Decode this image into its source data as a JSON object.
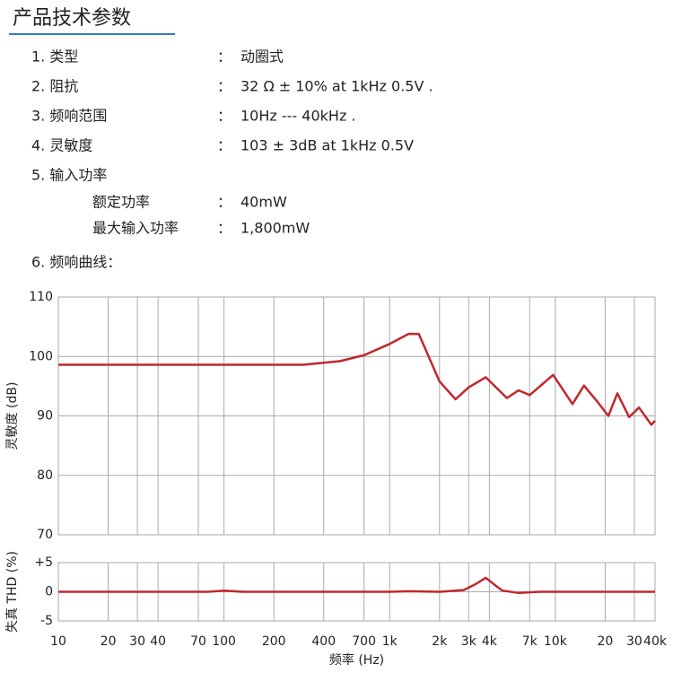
{
  "header": {
    "title": "产品技术参数"
  },
  "specs": {
    "separator": "：",
    "items": [
      {
        "label": "1. 类型",
        "value": "动圈式"
      },
      {
        "label": "2. 阻抗",
        "value": "32 Ω ± 10% at 1kHz 0.5V ."
      },
      {
        "label": "3. 频响范围",
        "value": "10Hz --- 40kHz ."
      },
      {
        "label": "4. 灵敏度",
        "value": "103 ± 3dB at 1kHz 0.5V"
      },
      {
        "label": "5. 输入功率",
        "subitems": [
          {
            "label": "额定功率",
            "value": "40mW"
          },
          {
            "label": "最大输入功率",
            "value": "1,800mW"
          }
        ]
      }
    ],
    "curve_label": "6. 频响曲线："
  },
  "chart_data": [
    {
      "type": "line",
      "y_label": "灵敏度 (dB)",
      "xscale": "log",
      "grid": true,
      "color": "#c0282d",
      "xlim": [
        10,
        40000
      ],
      "ylim": [
        70,
        110
      ],
      "yticks": [
        70,
        80,
        90,
        100,
        110
      ],
      "x": [
        10,
        100,
        300,
        500,
        700,
        1000,
        1300,
        1500,
        2000,
        2500,
        3000,
        3800,
        5100,
        6000,
        7000,
        9700,
        12700,
        14900,
        17800,
        20900,
        23700,
        27900,
        32000,
        38000,
        40000
      ],
      "values": [
        98.6,
        98.6,
        98.6,
        99.2,
        100.2,
        102.1,
        103.8,
        103.8,
        95.8,
        92.8,
        94.8,
        96.5,
        93,
        94.3,
        93.5,
        96.9,
        92,
        95.1,
        92.5,
        90,
        93.8,
        89.8,
        91.4,
        88.5,
        89.2
      ]
    },
    {
      "type": "line",
      "y_label": "失真 THD (%)",
      "x_label": "频率 (Hz)",
      "xscale": "log",
      "grid": true,
      "color": "#c0282d",
      "xlim": [
        10,
        40000
      ],
      "ylim": [
        -5,
        5
      ],
      "yticks": [
        -5,
        0,
        {
          "value": 5,
          "label": "+5"
        }
      ],
      "xticks": [
        10,
        20,
        30,
        40,
        70,
        100,
        200,
        400,
        700,
        {
          "value": 1000,
          "label": "1k"
        },
        {
          "value": 2000,
          "label": "2k"
        },
        {
          "value": 3000,
          "label": "3k"
        },
        {
          "value": 4000,
          "label": "4k"
        },
        {
          "value": 7000,
          "label": "7k"
        },
        {
          "value": 10000,
          "label": "10k"
        },
        {
          "value": 20000,
          "label": "20"
        },
        {
          "value": 30000,
          "label": "30"
        },
        {
          "value": 40000,
          "label": "40k"
        }
      ],
      "x": [
        10,
        80,
        100,
        130,
        1000,
        1300,
        2000,
        2800,
        3300,
        3800,
        4300,
        4800,
        6000,
        8000,
        40000
      ],
      "values": [
        0,
        0,
        0.2,
        0,
        0,
        0.1,
        0,
        0.3,
        1.3,
        2.4,
        1.2,
        0.2,
        -0.2,
        0,
        0
      ]
    }
  ]
}
